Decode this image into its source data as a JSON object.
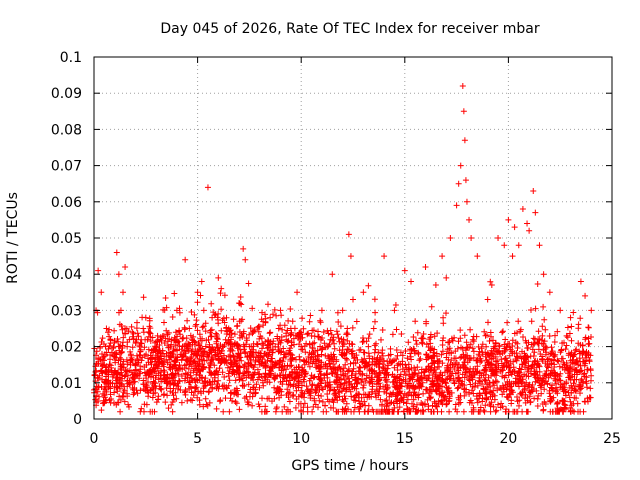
{
  "chart_data": {
    "type": "scatter",
    "title": "Day 045 of 2026, Rate Of TEC Index for receiver mbar",
    "xlabel": "GPS time / hours",
    "ylabel": "ROTI / TECUs",
    "xlim": [
      0,
      25
    ],
    "ylim": [
      0,
      0.1
    ],
    "x_ticks": [
      "0",
      "5",
      "10",
      "15",
      "20",
      "25"
    ],
    "y_ticks": [
      "0",
      "0.01",
      "0.02",
      "0.03",
      "0.04",
      "0.05",
      "0.06",
      "0.07",
      "0.08",
      "0.09",
      "0.1"
    ],
    "grid": true,
    "legend": "none",
    "marker": "+",
    "color": "#ff0000",
    "series": [
      {
        "x": [
          0.05,
          0.1,
          0.2,
          0.3,
          0.35,
          0.5,
          0.6,
          0.8,
          1.0,
          1.1,
          1.2,
          1.3,
          1.4,
          1.5,
          1.6,
          2.0,
          2.5,
          3.0,
          3.2,
          3.5,
          4.0,
          4.4,
          4.5,
          4.6,
          5.0,
          5.2,
          5.3,
          5.5,
          5.7,
          6.0,
          6.2,
          6.5,
          7.0,
          7.2,
          7.3,
          7.5,
          8.0,
          8.5,
          9.0,
          9.5,
          9.8,
          10.0,
          10.5,
          11.0,
          11.5,
          12.0,
          12.3,
          12.4,
          12.5,
          13.0,
          13.5,
          14.0,
          14.5,
          15.0,
          15.3,
          15.5,
          16.0,
          16.3,
          16.5,
          16.8,
          17.0,
          17.2,
          17.5,
          17.6,
          17.7,
          17.8,
          17.85,
          17.9,
          17.95,
          18.0,
          18.1,
          18.2,
          18.5,
          19.0,
          19.2,
          19.5,
          19.8,
          20.0,
          20.2,
          20.3,
          20.5,
          20.7,
          20.9,
          21.0,
          21.2,
          21.3,
          21.5,
          21.7,
          22.0,
          22.5,
          23.0,
          23.5,
          23.7,
          24.0
        ],
        "y": [
          0.012,
          0.03,
          0.041,
          0.02,
          0.035,
          0.015,
          0.025,
          0.01,
          0.018,
          0.046,
          0.04,
          0.03,
          0.035,
          0.042,
          0.02,
          0.015,
          0.028,
          0.012,
          0.022,
          0.018,
          0.03,
          0.044,
          0.005,
          0.025,
          0.035,
          0.038,
          0.03,
          0.064,
          0.028,
          0.039,
          0.02,
          0.025,
          0.032,
          0.047,
          0.044,
          0.02,
          0.015,
          0.028,
          0.03,
          0.025,
          0.035,
          0.02,
          0.018,
          0.03,
          0.04,
          0.03,
          0.051,
          0.045,
          0.033,
          0.035,
          0.025,
          0.045,
          0.03,
          0.041,
          0.038,
          0.027,
          0.042,
          0.031,
          0.037,
          0.045,
          0.039,
          0.05,
          0.059,
          0.065,
          0.07,
          0.092,
          0.085,
          0.077,
          0.066,
          0.06,
          0.055,
          0.05,
          0.045,
          0.033,
          0.037,
          0.05,
          0.048,
          0.055,
          0.045,
          0.053,
          0.048,
          0.058,
          0.054,
          0.052,
          0.063,
          0.057,
          0.048,
          0.04,
          0.035,
          0.03,
          0.028,
          0.038,
          0.034,
          0.03
        ]
      }
    ]
  }
}
